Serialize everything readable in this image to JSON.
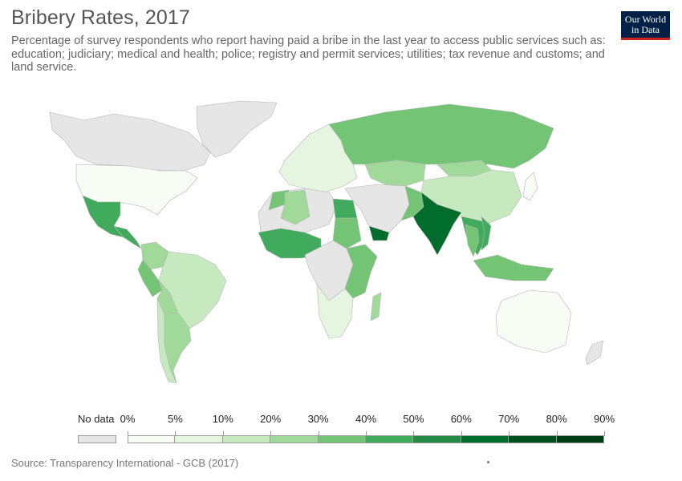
{
  "header": {
    "title": "Bribery Rates, 2017",
    "subtitle": "Percentage of survey respondents who report having paid a bribe in the last year to access public services such as: education; judiciary; medical and health; police; registry and permit services; utilities; tax revenue and customs; and land service."
  },
  "logo": {
    "line1": "Our World",
    "line2": "in Data"
  },
  "legend": {
    "nodata_label": "No data",
    "nodata_color": "#e6e6e6",
    "bins": [
      {
        "label": "0%",
        "color": "#f7fcf5"
      },
      {
        "label": "5%",
        "color": "#e5f5e0"
      },
      {
        "label": "10%",
        "color": "#c7e9c0"
      },
      {
        "label": "20%",
        "color": "#a1d99b"
      },
      {
        "label": "30%",
        "color": "#74c476"
      },
      {
        "label": "40%",
        "color": "#41ab5d"
      },
      {
        "label": "50%",
        "color": "#238b45"
      },
      {
        "label": "60%",
        "color": "#006d2c"
      },
      {
        "label": "70%",
        "color": "#00501f"
      },
      {
        "label": "80%",
        "color": "#003d17"
      }
    ],
    "end_label": "90%"
  },
  "footer": {
    "source": "Source: Transparency International - GCB (2017)"
  },
  "map_data": {
    "regions": [
      {
        "name": "Greenland",
        "bin": -1
      },
      {
        "name": "Canada",
        "bin": -1
      },
      {
        "name": "United States",
        "bin": 0
      },
      {
        "name": "Mexico",
        "bin": 5
      },
      {
        "name": "Central America",
        "bin": 5
      },
      {
        "name": "Colombia",
        "bin": 3
      },
      {
        "name": "Peru",
        "bin": 4
      },
      {
        "name": "Brazil",
        "bin": 2
      },
      {
        "name": "Bolivia",
        "bin": 3
      },
      {
        "name": "Argentina",
        "bin": 3
      },
      {
        "name": "Chile",
        "bin": 2
      },
      {
        "name": "Europe",
        "bin": 1
      },
      {
        "name": "Russia",
        "bin": 4
      },
      {
        "name": "Kazakhstan",
        "bin": 3
      },
      {
        "name": "China",
        "bin": 2
      },
      {
        "name": "Mongolia",
        "bin": 3
      },
      {
        "name": "India",
        "bin": 7
      },
      {
        "name": "Pakistan",
        "bin": 4
      },
      {
        "name": "Middle East",
        "bin": -1
      },
      {
        "name": "Yemen",
        "bin": 7
      },
      {
        "name": "Egypt",
        "bin": 5
      },
      {
        "name": "Sudan",
        "bin": 4
      },
      {
        "name": "North Africa",
        "bin": -1
      },
      {
        "name": "Algeria",
        "bin": 3
      },
      {
        "name": "Morocco",
        "bin": 4
      },
      {
        "name": "West Africa",
        "bin": 5
      },
      {
        "name": "Central Africa",
        "bin": -1
      },
      {
        "name": "East Africa",
        "bin": 4
      },
      {
        "name": "Southern Africa",
        "bin": 1
      },
      {
        "name": "Madagascar",
        "bin": 3
      },
      {
        "name": "Southeast Asia",
        "bin": 5
      },
      {
        "name": "Vietnam",
        "bin": 5
      },
      {
        "name": "Thailand",
        "bin": 4
      },
      {
        "name": "Indonesia",
        "bin": 4
      },
      {
        "name": "Japan",
        "bin": 0
      },
      {
        "name": "Australia",
        "bin": 0
      },
      {
        "name": "New Zealand",
        "bin": -1
      }
    ]
  }
}
